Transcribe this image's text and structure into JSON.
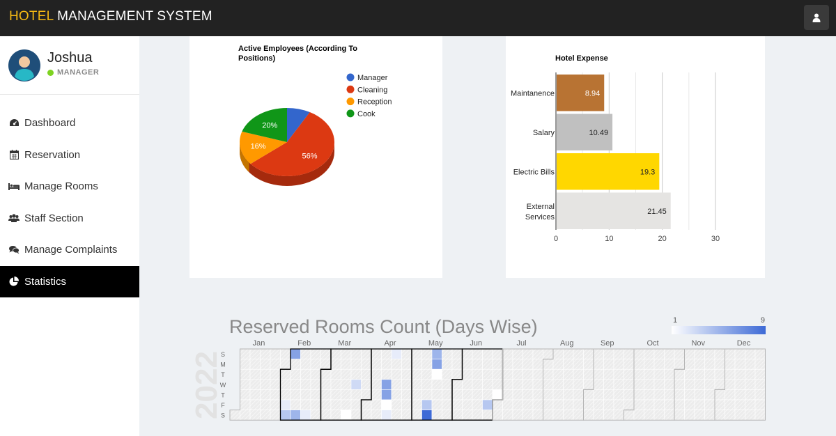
{
  "app": {
    "title_accent": "HOTEL",
    "title_rest": "MANAGEMENT SYSTEM"
  },
  "user": {
    "name": "Joshua",
    "role": "MANAGER"
  },
  "nav": [
    {
      "label": "Dashboard",
      "icon": "dashboard-icon"
    },
    {
      "label": "Reservation",
      "icon": "calendar-icon"
    },
    {
      "label": "Manage Rooms",
      "icon": "bed-icon"
    },
    {
      "label": "Staff Section",
      "icon": "users-icon"
    },
    {
      "label": "Manage Complaints",
      "icon": "comments-icon"
    },
    {
      "label": "Statistics",
      "icon": "pie-chart-icon",
      "active": true
    }
  ],
  "colors": {
    "manager": "#3366cc",
    "cleaning": "#dc3912",
    "reception": "#ff9900",
    "cook": "#109618",
    "maintanence": "#b87333",
    "salary": "#c0c0c0",
    "electric_bills": "#ffd700",
    "external_services": "#e5e4e2"
  },
  "chart_data": [
    {
      "type": "pie",
      "title": "Active Employees (According To Positions)",
      "labels": [
        "Manager",
        "Cleaning",
        "Reception",
        "Cook"
      ],
      "values": [
        8,
        56,
        16,
        20
      ],
      "slice_labels": [
        "",
        "56%",
        "16%",
        "20%"
      ],
      "legend": "right"
    },
    {
      "type": "bar",
      "orientation": "horizontal",
      "title": "Hotel Expense",
      "categories": [
        "Maintanence",
        "Salary",
        "Electric Bills",
        "External Services"
      ],
      "values": [
        8.94,
        10.49,
        19.3,
        21.45
      ],
      "value_labels": [
        "8.94",
        "10.49",
        "19.3",
        "21.45"
      ],
      "xlim": [
        0,
        30
      ],
      "xticks": [
        "0",
        "10",
        "20",
        "30"
      ]
    },
    {
      "type": "heatmap",
      "title": "Reserved Rooms Count (Days Wise)",
      "year": "2022",
      "months": [
        "Jan",
        "Feb",
        "Mar",
        "Apr",
        "May",
        "Jun",
        "Jul",
        "Aug",
        "Sep",
        "Oct",
        "Nov",
        "Dec"
      ],
      "weekdays": [
        "S",
        "M",
        "T",
        "W",
        "T",
        "F",
        "S"
      ],
      "color_range": [
        "1",
        "9"
      ],
      "cells": [
        {
          "week": 7,
          "day": 6,
          "value": 2
        },
        {
          "week": 6,
          "day": 0,
          "value": 6
        },
        {
          "week": 5,
          "day": 5,
          "value": 2
        },
        {
          "week": 5,
          "day": 6,
          "value": 4
        },
        {
          "week": 6,
          "day": 6,
          "value": 5
        },
        {
          "week": 11,
          "day": 6,
          "value": 1
        },
        {
          "week": 12,
          "day": 3,
          "value": 3
        },
        {
          "week": 16,
          "day": 0,
          "value": 2
        },
        {
          "week": 15,
          "day": 3,
          "value": 6
        },
        {
          "week": 15,
          "day": 4,
          "value": 6
        },
        {
          "week": 15,
          "day": 5,
          "value": 1
        },
        {
          "week": 15,
          "day": 6,
          "value": 2
        },
        {
          "week": 20,
          "day": 0,
          "value": 5
        },
        {
          "week": 20,
          "day": 1,
          "value": 6
        },
        {
          "week": 20,
          "day": 2,
          "value": 1
        },
        {
          "week": 19,
          "day": 5,
          "value": 4
        },
        {
          "week": 19,
          "day": 6,
          "value": 9
        },
        {
          "week": 25,
          "day": 5,
          "value": 4
        },
        {
          "week": 26,
          "day": 4,
          "value": 1
        }
      ]
    }
  ]
}
